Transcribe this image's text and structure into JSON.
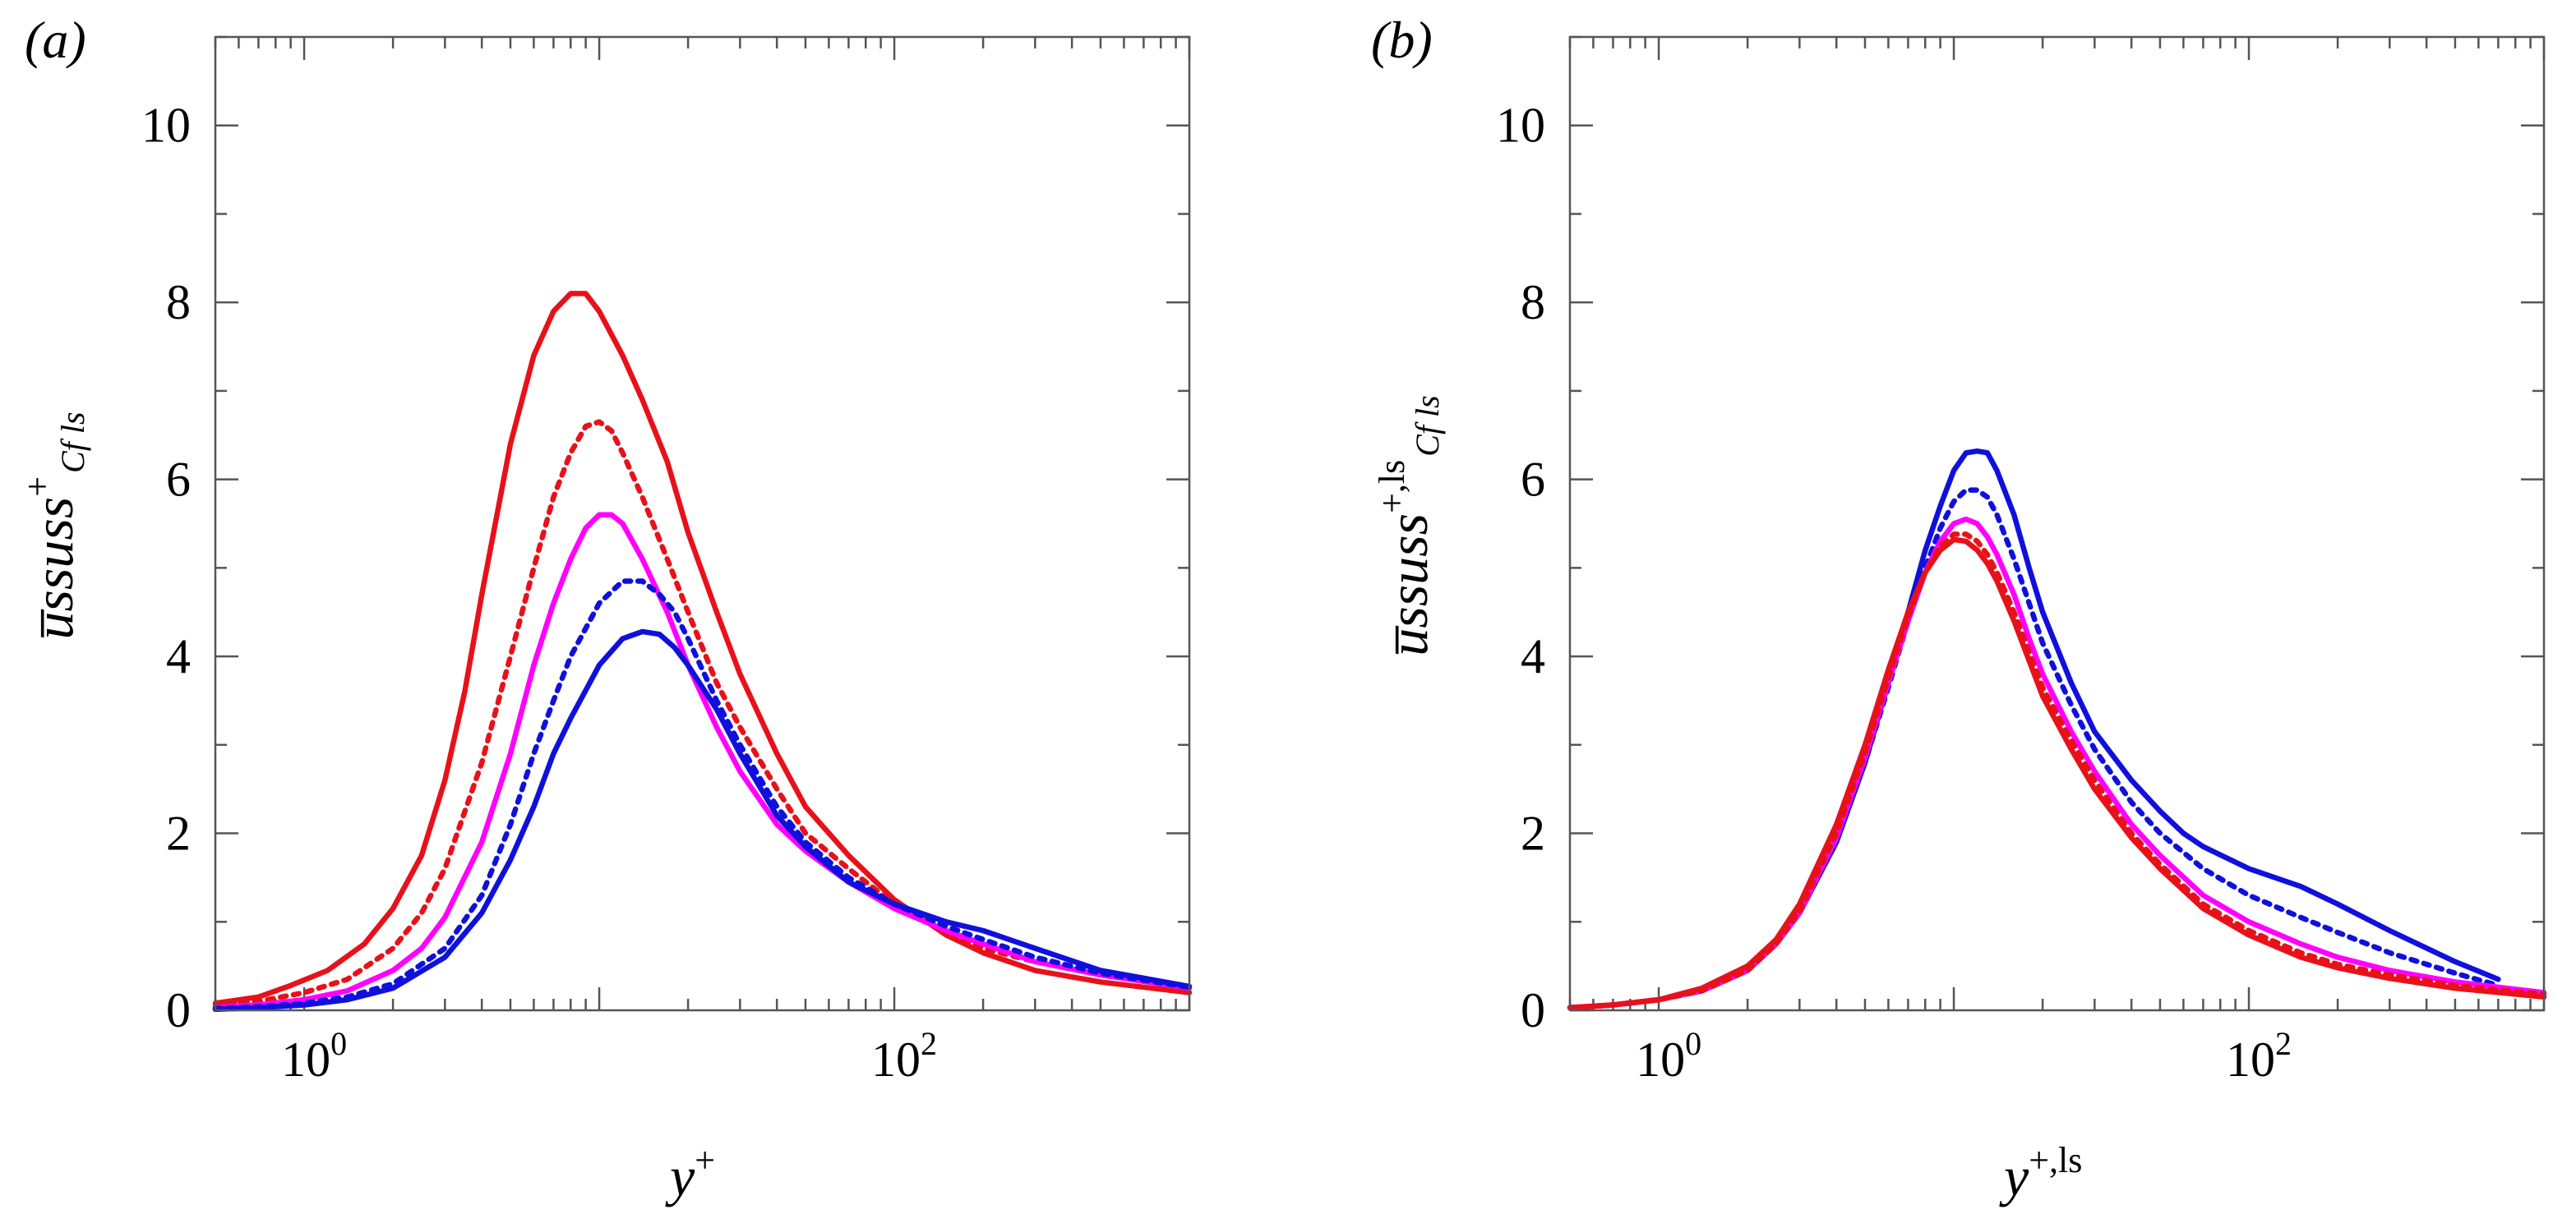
{
  "chart_data": [
    {
      "type": "line",
      "panel_label": "(a)",
      "xscale": "log",
      "xlim": [
        0.5,
        1000
      ],
      "ylim": [
        0,
        11
      ],
      "xticks": [
        {
          "base": "10",
          "exp": "0",
          "value": 1
        },
        {
          "base": "10",
          "exp": "2",
          "value": 100
        }
      ],
      "yticks": [
        "0",
        "2",
        "4",
        "6",
        "8",
        "10"
      ],
      "xlabel": {
        "main": "y",
        "sup": "+"
      },
      "ylabel": {
        "main": "u̅ssuss",
        "sup": "+",
        "sub": "Cf ls"
      },
      "series": [
        {
          "name": "red-solid",
          "color": "#e8111a",
          "dash": "solid",
          "x": [
            0.5,
            0.7,
            0.9,
            1.2,
            1.6,
            2.0,
            2.5,
            3.0,
            3.5,
            4.0,
            5.0,
            6.0,
            7.0,
            8.0,
            9.0,
            10,
            12,
            14,
            17,
            20,
            25,
            30,
            40,
            50,
            70,
            100,
            150,
            200,
            300,
            500,
            1000
          ],
          "y": [
            0.08,
            0.15,
            0.28,
            0.45,
            0.75,
            1.15,
            1.75,
            2.6,
            3.6,
            4.7,
            6.4,
            7.4,
            7.9,
            8.1,
            8.1,
            7.9,
            7.4,
            6.9,
            6.2,
            5.4,
            4.5,
            3.8,
            2.9,
            2.3,
            1.75,
            1.25,
            0.85,
            0.65,
            0.45,
            0.32,
            0.2
          ]
        },
        {
          "name": "red-dotted",
          "color": "#e8111a",
          "dash": "dotted",
          "x": [
            0.5,
            0.7,
            1.0,
            1.4,
            2.0,
            2.5,
            3.0,
            4.0,
            5.0,
            6.0,
            7.0,
            8.0,
            9.0,
            10,
            11,
            12,
            14,
            17,
            20,
            25,
            30,
            40,
            50,
            70,
            100,
            150,
            200,
            300,
            500,
            1000
          ],
          "y": [
            0.05,
            0.1,
            0.2,
            0.35,
            0.7,
            1.1,
            1.6,
            2.8,
            4.0,
            5.0,
            5.8,
            6.3,
            6.6,
            6.65,
            6.55,
            6.3,
            5.8,
            5.1,
            4.5,
            3.7,
            3.2,
            2.5,
            2.0,
            1.6,
            1.2,
            0.9,
            0.7,
            0.55,
            0.4,
            0.25
          ]
        },
        {
          "name": "magenta-solid",
          "color": "#ff00ff",
          "dash": "solid",
          "x": [
            0.5,
            0.7,
            1.0,
            1.4,
            2.0,
            2.5,
            3.0,
            4.0,
            5.0,
            6.0,
            7.0,
            8.0,
            9.0,
            10,
            11,
            12,
            14,
            17,
            20,
            25,
            30,
            40,
            50,
            70,
            100,
            150,
            200,
            300,
            500,
            1000
          ],
          "y": [
            0.03,
            0.06,
            0.12,
            0.22,
            0.45,
            0.7,
            1.05,
            1.9,
            2.9,
            3.9,
            4.6,
            5.1,
            5.45,
            5.6,
            5.6,
            5.5,
            5.1,
            4.5,
            3.9,
            3.2,
            2.7,
            2.1,
            1.8,
            1.45,
            1.15,
            0.9,
            0.75,
            0.55,
            0.4,
            0.25
          ]
        },
        {
          "name": "blue-dotted",
          "color": "#1010dd",
          "dash": "dotted",
          "x": [
            0.5,
            0.7,
            1.0,
            1.4,
            2.0,
            3.0,
            4.0,
            5.0,
            6.0,
            7.0,
            8.0,
            10,
            12,
            14,
            16,
            18,
            20,
            25,
            30,
            40,
            50,
            70,
            100,
            150,
            200,
            300,
            500,
            1000
          ],
          "y": [
            0.02,
            0.04,
            0.08,
            0.15,
            0.3,
            0.7,
            1.3,
            2.1,
            2.9,
            3.5,
            4.0,
            4.6,
            4.85,
            4.85,
            4.7,
            4.5,
            4.2,
            3.5,
            3.0,
            2.3,
            1.9,
            1.5,
            1.2,
            0.95,
            0.8,
            0.6,
            0.42,
            0.26
          ]
        },
        {
          "name": "blue-solid",
          "color": "#1010dd",
          "dash": "solid",
          "x": [
            0.5,
            0.7,
            1.0,
            1.4,
            2.0,
            3.0,
            4.0,
            5.0,
            6.0,
            7.0,
            8.0,
            10,
            12,
            14,
            16,
            18,
            20,
            25,
            30,
            40,
            50,
            70,
            100,
            150,
            200,
            300,
            500,
            1000
          ],
          "y": [
            0.01,
            0.03,
            0.06,
            0.12,
            0.25,
            0.6,
            1.1,
            1.7,
            2.3,
            2.9,
            3.3,
            3.9,
            4.2,
            4.28,
            4.25,
            4.1,
            3.9,
            3.4,
            2.9,
            2.2,
            1.85,
            1.45,
            1.2,
            1.0,
            0.9,
            0.7,
            0.45,
            0.27
          ]
        }
      ]
    },
    {
      "type": "line",
      "panel_label": "(b)",
      "xscale": "log",
      "xlim": [
        0.5,
        1000
      ],
      "ylim": [
        0,
        11
      ],
      "xticks": [
        {
          "base": "10",
          "exp": "0",
          "value": 1
        },
        {
          "base": "10",
          "exp": "2",
          "value": 100
        }
      ],
      "yticks": [
        "0",
        "2",
        "4",
        "6",
        "8",
        "10"
      ],
      "xlabel": {
        "main": "y",
        "sup": "+,ls"
      },
      "ylabel": {
        "main": "u̅ssuss",
        "sup": "+,ls",
        "sub": "Cf ls"
      },
      "series": [
        {
          "name": "blue-solid",
          "color": "#1010dd",
          "dash": "solid",
          "x": [
            0.5,
            0.7,
            1.0,
            1.4,
            2.0,
            2.5,
            3.0,
            4.0,
            5.0,
            6.0,
            7.0,
            8.0,
            9.0,
            10,
            11,
            12,
            13,
            14,
            16,
            18,
            20,
            25,
            30,
            40,
            50,
            60,
            70,
            100,
            150,
            200,
            300,
            500,
            700
          ],
          "y": [
            0.03,
            0.06,
            0.12,
            0.22,
            0.45,
            0.75,
            1.1,
            1.9,
            2.8,
            3.7,
            4.5,
            5.2,
            5.7,
            6.1,
            6.3,
            6.32,
            6.3,
            6.1,
            5.6,
            5.0,
            4.5,
            3.7,
            3.15,
            2.6,
            2.25,
            2.0,
            1.85,
            1.6,
            1.4,
            1.2,
            0.9,
            0.55,
            0.35
          ]
        },
        {
          "name": "blue-dotted",
          "color": "#1010dd",
          "dash": "dotted",
          "x": [
            0.5,
            0.7,
            1.0,
            1.4,
            2.0,
            2.5,
            3.0,
            4.0,
            5.0,
            6.0,
            7.0,
            8.0,
            9.0,
            10,
            11,
            12,
            13,
            14,
            16,
            18,
            20,
            25,
            30,
            40,
            50,
            70,
            100,
            150,
            200,
            300,
            500,
            700
          ],
          "y": [
            0.03,
            0.06,
            0.12,
            0.22,
            0.45,
            0.75,
            1.1,
            1.9,
            2.8,
            3.65,
            4.4,
            5.0,
            5.45,
            5.75,
            5.88,
            5.88,
            5.8,
            5.6,
            5.1,
            4.6,
            4.15,
            3.45,
            2.95,
            2.35,
            2.0,
            1.6,
            1.3,
            1.05,
            0.88,
            0.65,
            0.42,
            0.28
          ]
        },
        {
          "name": "magenta-solid",
          "color": "#ff00ff",
          "dash": "solid",
          "x": [
            0.5,
            0.7,
            1.0,
            1.4,
            2.0,
            2.5,
            3.0,
            4.0,
            5.0,
            6.0,
            7.0,
            8.0,
            9.0,
            10,
            11,
            12,
            13,
            14,
            16,
            18,
            20,
            25,
            30,
            40,
            50,
            70,
            100,
            150,
            200,
            300,
            500,
            1000
          ],
          "y": [
            0.03,
            0.06,
            0.12,
            0.22,
            0.45,
            0.75,
            1.1,
            1.95,
            2.85,
            3.7,
            4.4,
            4.95,
            5.3,
            5.5,
            5.55,
            5.5,
            5.35,
            5.15,
            4.7,
            4.2,
            3.8,
            3.15,
            2.7,
            2.1,
            1.75,
            1.3,
            1.0,
            0.75,
            0.6,
            0.45,
            0.32,
            0.2
          ]
        },
        {
          "name": "red-dotted",
          "color": "#e8111a",
          "dash": "dotted",
          "x": [
            0.5,
            0.7,
            1.0,
            1.4,
            2.0,
            2.5,
            3.0,
            4.0,
            5.0,
            6.0,
            7.0,
            8.0,
            9.0,
            10,
            11,
            12,
            13,
            14,
            16,
            18,
            20,
            25,
            30,
            40,
            50,
            70,
            100,
            150,
            200,
            300,
            500,
            1000
          ],
          "y": [
            0.03,
            0.06,
            0.12,
            0.22,
            0.45,
            0.75,
            1.12,
            2.0,
            2.9,
            3.75,
            4.45,
            4.95,
            5.25,
            5.38,
            5.38,
            5.3,
            5.15,
            4.95,
            4.5,
            4.05,
            3.65,
            3.05,
            2.6,
            2.0,
            1.65,
            1.2,
            0.9,
            0.65,
            0.52,
            0.4,
            0.28,
            0.18
          ]
        },
        {
          "name": "red-solid",
          "color": "#e8111a",
          "dash": "solid",
          "x": [
            0.5,
            0.7,
            1.0,
            1.4,
            2.0,
            2.5,
            3.0,
            4.0,
            5.0,
            6.0,
            7.0,
            8.0,
            9.0,
            10,
            11,
            12,
            13,
            14,
            16,
            18,
            20,
            25,
            30,
            40,
            50,
            70,
            100,
            150,
            200,
            300,
            500,
            1000
          ],
          "y": [
            0.03,
            0.06,
            0.12,
            0.25,
            0.5,
            0.8,
            1.2,
            2.1,
            3.0,
            3.85,
            4.5,
            4.95,
            5.2,
            5.32,
            5.3,
            5.2,
            5.05,
            4.85,
            4.4,
            3.95,
            3.55,
            2.95,
            2.5,
            1.95,
            1.6,
            1.15,
            0.85,
            0.6,
            0.48,
            0.36,
            0.25,
            0.15
          ]
        }
      ]
    }
  ]
}
